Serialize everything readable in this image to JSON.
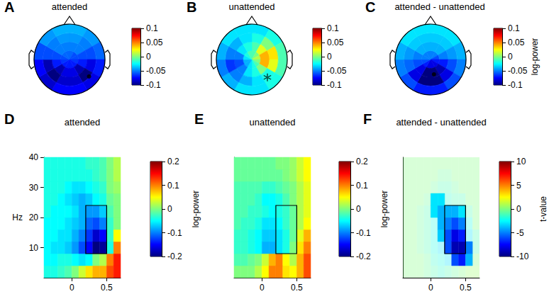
{
  "chart_data": [
    {
      "type": "topomap",
      "panel": "A",
      "title": "attended",
      "tick_labels": false,
      "radius_edges": [
        0,
        0.25,
        0.5,
        0.75,
        1
      ],
      "angle_edges": [
        0,
        30,
        60,
        90,
        120,
        150,
        180,
        210,
        240,
        270,
        300,
        330,
        360
      ],
      "values": [
        [
          -0.055,
          -0.06,
          -0.06,
          -0.065,
          -0.07,
          -0.07,
          -0.07,
          -0.07,
          -0.065,
          -0.06,
          -0.055,
          -0.055
        ],
        [
          -0.05,
          -0.05,
          -0.06,
          -0.07,
          -0.09,
          -0.08,
          -0.08,
          -0.09,
          -0.07,
          -0.06,
          -0.05,
          -0.05
        ],
        [
          -0.045,
          -0.05,
          -0.06,
          -0.08,
          -0.1,
          -0.085,
          -0.085,
          -0.1,
          -0.09,
          -0.06,
          -0.05,
          -0.045
        ],
        [
          -0.04,
          -0.045,
          -0.055,
          -0.07,
          -0.08,
          -0.075,
          -0.075,
          -0.085,
          -0.075,
          -0.06,
          -0.045,
          -0.04
        ]
      ],
      "electrodes": [
        {
          "radius": 0.73,
          "angle": 131,
          "marker": "dot"
        }
      ],
      "colorbar": {
        "range": [
          -0.1,
          0.1
        ],
        "ticks": [
          -0.1,
          -0.05,
          0,
          0.05,
          0.1
        ]
      }
    },
    {
      "type": "topomap",
      "panel": "B",
      "title": "unattended",
      "tick_labels": false,
      "radius_edges": [
        0,
        0.25,
        0.5,
        0.75,
        1
      ],
      "angle_edges": [
        0,
        30,
        60,
        90,
        120,
        150,
        180,
        210,
        240,
        270,
        300,
        330,
        360
      ],
      "values": [
        [
          -0.01,
          0.0,
          0.01,
          0.0,
          -0.01,
          -0.02,
          -0.03,
          -0.04,
          -0.04,
          -0.03,
          -0.02,
          -0.01
        ],
        [
          -0.01,
          0.02,
          0.04,
          0.04,
          0.0,
          -0.02,
          -0.03,
          -0.05,
          -0.06,
          -0.05,
          -0.03,
          -0.02
        ],
        [
          -0.02,
          0.0,
          0.03,
          0.02,
          -0.02,
          -0.03,
          -0.04,
          -0.05,
          -0.065,
          -0.05,
          -0.04,
          -0.03
        ],
        [
          -0.03,
          -0.02,
          -0.01,
          -0.01,
          -0.02,
          -0.03,
          -0.03,
          -0.04,
          -0.05,
          -0.04,
          -0.03,
          -0.03
        ]
      ],
      "electrodes": [
        {
          "radius": 0.67,
          "angle": 139,
          "marker": "asterisk"
        }
      ],
      "colorbar": {
        "range": [
          -0.1,
          0.1
        ],
        "ticks": [
          -0.1,
          -0.05,
          0,
          0.05,
          0.1
        ]
      }
    },
    {
      "type": "topomap",
      "panel": "C",
      "title": "attended - unattended",
      "tick_labels": false,
      "radius_edges": [
        0,
        0.25,
        0.5,
        0.75,
        1
      ],
      "angle_edges": [
        0,
        30,
        60,
        90,
        120,
        150,
        180,
        210,
        240,
        270,
        300,
        330,
        360
      ],
      "values": [
        [
          -0.05,
          -0.05,
          -0.06,
          -0.07,
          -0.08,
          -0.08,
          -0.08,
          -0.07,
          -0.06,
          -0.05,
          -0.05,
          -0.05
        ],
        [
          -0.04,
          -0.04,
          -0.05,
          -0.07,
          -0.09,
          -0.1,
          -0.1,
          -0.08,
          -0.06,
          -0.05,
          -0.04,
          -0.04
        ],
        [
          -0.035,
          -0.035,
          -0.045,
          -0.06,
          -0.08,
          -0.1,
          -0.1,
          -0.08,
          -0.055,
          -0.045,
          -0.035,
          -0.035
        ],
        [
          -0.03,
          -0.03,
          -0.04,
          -0.05,
          -0.06,
          -0.07,
          -0.07,
          -0.06,
          -0.05,
          -0.04,
          -0.03,
          -0.03
        ]
      ],
      "electrodes": [
        {
          "radius": 0.43,
          "angle": 167,
          "marker": "dot"
        }
      ],
      "colorbar": {
        "range": [
          -0.1,
          0.1
        ],
        "ticks": [
          -0.1,
          -0.05,
          0,
          0.05,
          0.1
        ],
        "label": "log-power"
      }
    },
    {
      "type": "heatmap",
      "panel": "D",
      "title": "attended",
      "ylabel": "Hz",
      "xlim": [
        -0.4,
        0.7
      ],
      "xticks": [
        0,
        0.5
      ],
      "ylim": [
        0,
        40
      ],
      "yticks": [
        10,
        20,
        30,
        40
      ],
      "t_edges": [
        -0.4,
        -0.3,
        -0.2,
        -0.1,
        0,
        0.1,
        0.2,
        0.3,
        0.4,
        0.5,
        0.6,
        0.7
      ],
      "f_edges": [
        0,
        4,
        8,
        12,
        16,
        20,
        24,
        28,
        32,
        36,
        40
      ],
      "values": [
        [
          -0.04,
          -0.04,
          -0.03,
          -0.02,
          0.0,
          0.03,
          0.06,
          0.08,
          0.08,
          0.12,
          0.14
        ],
        [
          -0.05,
          -0.05,
          -0.04,
          -0.04,
          -0.05,
          -0.06,
          -0.05,
          0.0,
          0.02,
          0.1,
          0.14
        ],
        [
          -0.05,
          -0.06,
          -0.06,
          -0.07,
          -0.09,
          -0.12,
          -0.15,
          -0.2,
          -0.19,
          -0.04,
          0.1
        ],
        [
          -0.05,
          -0.05,
          -0.06,
          -0.06,
          -0.08,
          -0.1,
          -0.13,
          -0.17,
          -0.15,
          -0.03,
          0.05
        ],
        [
          -0.05,
          -0.05,
          -0.05,
          -0.06,
          -0.07,
          -0.08,
          -0.11,
          -0.12,
          -0.1,
          -0.03,
          0.0
        ],
        [
          -0.04,
          -0.05,
          -0.05,
          -0.05,
          -0.06,
          -0.08,
          -0.09,
          -0.09,
          -0.07,
          -0.02,
          0.0
        ],
        [
          -0.04,
          -0.04,
          -0.05,
          -0.06,
          -0.07,
          -0.08,
          -0.07,
          -0.05,
          -0.04,
          -0.01,
          0.0
        ],
        [
          -0.04,
          -0.04,
          -0.04,
          -0.05,
          -0.06,
          -0.06,
          -0.05,
          -0.04,
          -0.03,
          0.0,
          0.01
        ],
        [
          -0.04,
          -0.04,
          -0.04,
          -0.04,
          -0.04,
          -0.04,
          -0.04,
          -0.03,
          -0.02,
          0.0,
          0.02
        ],
        [
          -0.04,
          -0.04,
          -0.04,
          -0.04,
          -0.04,
          -0.04,
          -0.03,
          -0.03,
          -0.02,
          0.0,
          0.02
        ]
      ],
      "region": {
        "t": [
          0.2,
          0.5
        ],
        "f": [
          8,
          24
        ]
      },
      "colorbar": {
        "range": [
          -0.2,
          0.2
        ],
        "ticks": [
          -0.2,
          -0.1,
          0,
          0.1,
          0.2
        ],
        "label": "log-power"
      }
    },
    {
      "type": "heatmap",
      "panel": "E",
      "title": "unattended",
      "tick_labels": "x",
      "xlim": [
        -0.4,
        0.7
      ],
      "xticks": [
        0,
        0.5
      ],
      "ylim": [
        0,
        40
      ],
      "t_edges": [
        -0.4,
        -0.3,
        -0.2,
        -0.1,
        0,
        0.1,
        0.2,
        0.3,
        0.4,
        0.5,
        0.6,
        0.7
      ],
      "f_edges": [
        0,
        4,
        8,
        12,
        16,
        20,
        24,
        28,
        32,
        36,
        40
      ],
      "values": [
        [
          0.0,
          0.0,
          0.0,
          0.02,
          0.05,
          0.1,
          0.1,
          0.06,
          0.05,
          0.08,
          0.12
        ],
        [
          -0.02,
          -0.02,
          -0.01,
          0.0,
          0.03,
          0.08,
          0.1,
          0.05,
          0.02,
          0.08,
          0.12
        ],
        [
          -0.03,
          -0.03,
          -0.04,
          -0.05,
          -0.08,
          -0.08,
          -0.06,
          -0.04,
          0.0,
          0.06,
          0.1
        ],
        [
          -0.03,
          -0.03,
          -0.04,
          -0.05,
          -0.07,
          -0.07,
          -0.06,
          -0.04,
          -0.01,
          0.04,
          0.08
        ],
        [
          -0.02,
          -0.03,
          -0.03,
          -0.04,
          -0.06,
          -0.06,
          -0.05,
          -0.03,
          -0.01,
          0.02,
          0.05
        ],
        [
          -0.02,
          -0.02,
          -0.03,
          -0.03,
          -0.04,
          -0.05,
          -0.04,
          -0.03,
          -0.01,
          0.02,
          0.04
        ],
        [
          -0.02,
          -0.02,
          -0.02,
          -0.03,
          -0.05,
          -0.05,
          -0.04,
          -0.02,
          0.0,
          0.02,
          0.04
        ],
        [
          -0.02,
          -0.02,
          -0.02,
          -0.02,
          -0.03,
          -0.03,
          -0.02,
          -0.01,
          0.0,
          0.02,
          0.04
        ],
        [
          -0.01,
          -0.01,
          -0.01,
          -0.01,
          -0.01,
          -0.01,
          -0.01,
          0.0,
          0.01,
          0.03,
          0.05
        ],
        [
          -0.01,
          -0.01,
          -0.01,
          -0.01,
          -0.01,
          -0.01,
          0.0,
          0.0,
          0.01,
          0.03,
          0.05
        ]
      ],
      "region": {
        "t": [
          0.2,
          0.5
        ],
        "f": [
          8,
          24
        ]
      },
      "colorbar": {
        "range": [
          -0.2,
          0.2
        ],
        "ticks": [
          -0.2,
          -0.1,
          0,
          0.1,
          0.2
        ],
        "label": "log-power"
      }
    },
    {
      "type": "heatmap",
      "panel": "F",
      "title": "attended - unattended",
      "tick_labels": "x",
      "xlim": [
        -0.4,
        0.7
      ],
      "xticks": [
        0,
        0.5
      ],
      "ylim": [
        0,
        40
      ],
      "t_edges": [
        -0.4,
        -0.3,
        -0.2,
        -0.1,
        0,
        0.1,
        0.2,
        0.3,
        0.4,
        0.5,
        0.6,
        0.7
      ],
      "f_edges": [
        0,
        4,
        8,
        12,
        16,
        20,
        24,
        28,
        32,
        36,
        40
      ],
      "values": [
        [
          0,
          0,
          0,
          -0.5,
          -1,
          -1.5,
          -1,
          -0.5,
          0,
          0.5,
          0.5
        ],
        [
          0,
          0,
          0,
          -0.5,
          -1.5,
          -2,
          -3,
          -6,
          -7,
          -4,
          0
        ],
        [
          0,
          0,
          -0.5,
          -1,
          -2,
          -3,
          -6,
          -9,
          -9,
          -5,
          -1
        ],
        [
          0,
          0,
          -0.5,
          -1,
          -2,
          -3.5,
          -6,
          -8,
          -7,
          -3,
          -1
        ],
        [
          0,
          0,
          -0.5,
          -1,
          -2,
          -4,
          -5,
          -6,
          -5,
          -2,
          0
        ],
        [
          0,
          0,
          -0.5,
          -1,
          -3,
          -4,
          -4,
          -4,
          -3,
          -1,
          0
        ],
        [
          0,
          0,
          0,
          -0.5,
          -3,
          -3,
          -1.5,
          -1,
          -1,
          0,
          0
        ],
        [
          0,
          0,
          0,
          0,
          -0.5,
          -1,
          -1,
          -0.5,
          0,
          0,
          0
        ],
        [
          0,
          0,
          0,
          0,
          0,
          -0.5,
          -0.5,
          0,
          0,
          0,
          0
        ],
        [
          0,
          0,
          0,
          0,
          0,
          0,
          0,
          0,
          0,
          0,
          0
        ]
      ],
      "significant": [
        [
          false,
          false,
          false,
          false,
          false,
          false,
          false,
          false,
          false,
          false,
          false
        ],
        [
          false,
          false,
          false,
          false,
          false,
          false,
          false,
          true,
          true,
          true,
          false
        ],
        [
          false,
          false,
          false,
          false,
          false,
          false,
          true,
          true,
          true,
          true,
          false
        ],
        [
          false,
          false,
          false,
          false,
          false,
          true,
          true,
          true,
          true,
          false,
          false
        ],
        [
          false,
          false,
          false,
          false,
          false,
          true,
          true,
          true,
          true,
          false,
          false
        ],
        [
          false,
          false,
          false,
          false,
          true,
          true,
          true,
          true,
          true,
          false,
          false
        ],
        [
          false,
          false,
          false,
          false,
          true,
          true,
          false,
          false,
          false,
          false,
          false
        ],
        [
          false,
          false,
          false,
          false,
          false,
          false,
          false,
          false,
          false,
          false,
          false
        ],
        [
          false,
          false,
          false,
          false,
          false,
          false,
          false,
          false,
          false,
          false,
          false
        ],
        [
          false,
          false,
          false,
          false,
          false,
          false,
          false,
          false,
          false,
          false,
          false
        ]
      ],
      "region": {
        "t": [
          0.2,
          0.5
        ],
        "f": [
          8,
          24
        ]
      },
      "colorbar": {
        "range": [
          -10,
          10
        ],
        "ticks": [
          -10,
          -5,
          0,
          5,
          10
        ],
        "label": "t-value"
      }
    }
  ]
}
